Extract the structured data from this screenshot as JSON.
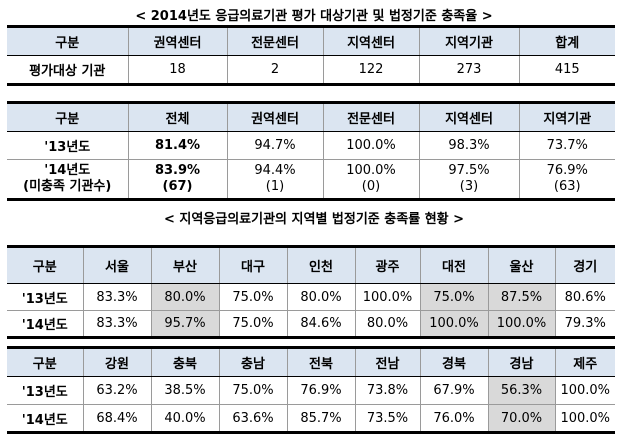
{
  "titles": {
    "t1": "< 2014년도 응급의료기관 평가 대상기관 및 법정기준 충족율 >",
    "t2": "< 지역응급의료기관의 지역별 법정기준 충족률 현황 >"
  },
  "table1": {
    "header": [
      "구분",
      "권역센터",
      "전문센터",
      "지역센터",
      "지역기관",
      "합계"
    ],
    "row": {
      "label": "평가대상 기관",
      "values": [
        "18",
        "2",
        "122",
        "273",
        "415"
      ]
    }
  },
  "table2": {
    "header": [
      "구분",
      "전체",
      "권역센터",
      "전문센터",
      "지역센터",
      "지역기관"
    ],
    "row13": {
      "label": "'13년도",
      "values": [
        "81.4%",
        "94.7%",
        "100.0%",
        "98.3%",
        "73.7%"
      ]
    },
    "row14": {
      "label1": "'14년도",
      "label2": "(미충족 기관수)",
      "values": [
        "83.9%",
        "94.4%",
        "100.0%",
        "97.5%",
        "76.9%"
      ],
      "counts": [
        "(67)",
        "(1)",
        "(0)",
        "(3)",
        "(63)"
      ]
    }
  },
  "table3": {
    "header": [
      "구분",
      "서울",
      "부산",
      "대구",
      "인천",
      "광주",
      "대전",
      "울산",
      "경기"
    ],
    "row13": {
      "label": "'13년도",
      "values": [
        "83.3%",
        "80.0%",
        "75.0%",
        "80.0%",
        "100.0%",
        "75.0%",
        "87.5%",
        "80.6%"
      ]
    },
    "row14": {
      "label": "'14년도",
      "values": [
        "83.3%",
        "95.7%",
        "75.0%",
        "84.6%",
        "80.0%",
        "100.0%",
        "100.0%",
        "79.3%"
      ]
    }
  },
  "table4": {
    "header": [
      "구분",
      "강원",
      "충북",
      "충남",
      "전북",
      "전남",
      "경북",
      "경남",
      "제주"
    ],
    "row13": {
      "label": "'13년도",
      "values": [
        "63.2%",
        "38.5%",
        "75.0%",
        "76.9%",
        "73.8%",
        "67.9%",
        "56.3%",
        "100.0%"
      ]
    },
    "row14": {
      "label": "'14년도",
      "values": [
        "68.4%",
        "40.0%",
        "63.6%",
        "85.7%",
        "73.5%",
        "76.0%",
        "70.0%",
        "100.0%"
      ]
    }
  }
}
